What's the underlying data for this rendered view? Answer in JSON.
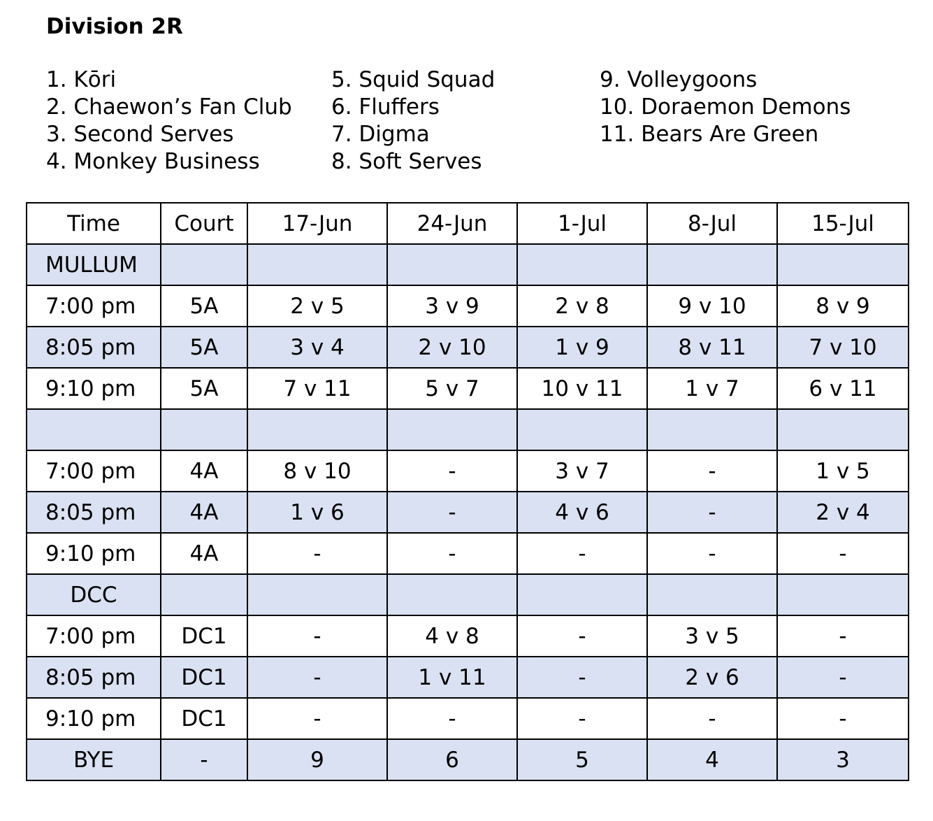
{
  "title": "Division 2R",
  "teams": [
    [
      "1. Kōri",
      "2. Chaewon’s Fan Club",
      "3. Second Serves",
      "4. Monkey Business"
    ],
    [
      "5. Squid Squad",
      "6. Fluffers",
      "7. Digma",
      "8. Soft Serves"
    ],
    [
      "9. Volleygoons",
      "10. Doraemon Demons",
      "11. Bears Are Green"
    ]
  ],
  "table": {
    "headers": [
      "Time",
      "Court",
      "17-Jun",
      "24-Jun",
      "1-Jul",
      "8-Jul",
      "15-Jul"
    ],
    "rows": [
      [
        "MULLUM",
        "",
        "",
        "",
        "",
        "",
        ""
      ],
      [
        "7:00 pm",
        "5A",
        "2 v 5",
        "3 v 9",
        "2 v 8",
        "9 v 10",
        "8 v 9"
      ],
      [
        "8:05 pm",
        "5A",
        "3 v 4",
        "2 v 10",
        "1 v 9",
        "8 v 11",
        "7 v 10"
      ],
      [
        "9:10 pm",
        "5A",
        "7 v 11",
        "5 v 7",
        "10 v 11",
        "1 v 7",
        "6 v 11"
      ],
      [
        "",
        "",
        "",
        "",
        "",
        "",
        ""
      ],
      [
        "7:00 pm",
        "4A",
        "8 v 10",
        "-",
        "3 v 7",
        "-",
        "1 v 5"
      ],
      [
        "8:05 pm",
        "4A",
        "1 v 6",
        "-",
        "4 v 6",
        "-",
        "2 v 4"
      ],
      [
        "9:10 pm",
        "4A",
        "-",
        "-",
        "-",
        "-",
        "-"
      ],
      [
        "DCC",
        "",
        "",
        "",
        "",
        "",
        ""
      ],
      [
        "7:00 pm",
        "DC1",
        "-",
        "4 v 8",
        "-",
        "3 v 5",
        "-"
      ],
      [
        "8:05 pm",
        "DC1",
        "-",
        "1 v 11",
        "-",
        "2 v 6",
        "-"
      ],
      [
        "9:10 pm",
        "DC1",
        "-",
        "-",
        "-",
        "-",
        "-"
      ],
      [
        "BYE",
        "-",
        "9",
        "6",
        "5",
        "4",
        "3"
      ]
    ],
    "shaded_rows": [
      0,
      2,
      4,
      6,
      8,
      10,
      12
    ],
    "shade_color": "#d9e1f2"
  }
}
